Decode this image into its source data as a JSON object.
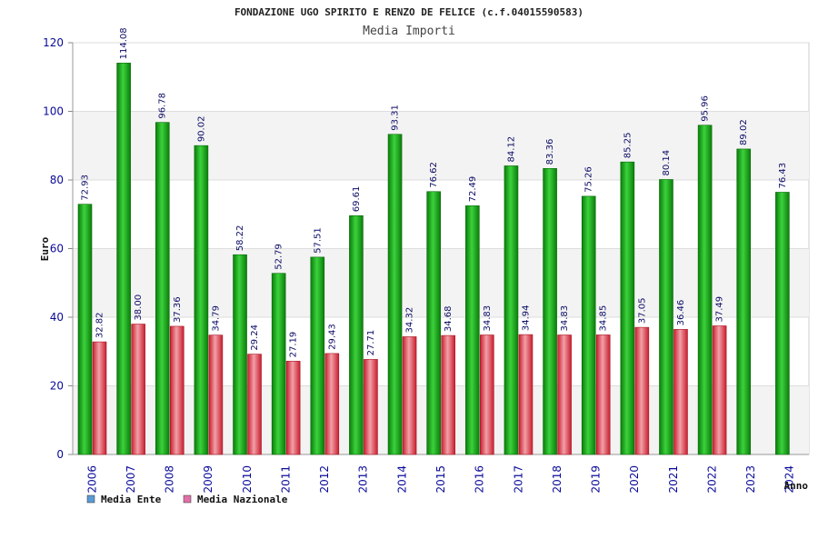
{
  "chart_data": {
    "type": "bar",
    "title": "FONDAZIONE UGO SPIRITO E RENZO DE FELICE (c.f.04015590583)",
    "subtitle": "Media Importi",
    "xlabel": "Anno",
    "ylabel": "Euro",
    "ylim": [
      0,
      120
    ],
    "yticks": [
      0,
      20,
      40,
      60,
      80,
      100,
      120
    ],
    "grid": true,
    "legend_position": "bottom-left",
    "categories": [
      "2006",
      "2007",
      "2008",
      "2009",
      "2010",
      "2011",
      "2012",
      "2013",
      "2014",
      "2015",
      "2016",
      "2017",
      "2018",
      "2019",
      "2020",
      "2021",
      "2022",
      "2023",
      "2024"
    ],
    "series": [
      {
        "name": "Media Ente",
        "color": "#13b013",
        "legend_color": "#5b9bd5",
        "values": [
          72.93,
          114.08,
          96.78,
          90.02,
          58.22,
          52.79,
          57.51,
          69.61,
          93.31,
          76.62,
          72.49,
          84.12,
          83.36,
          75.26,
          85.25,
          80.14,
          95.96,
          89.02,
          76.43
        ],
        "labels": [
          "72.93",
          "114.08",
          "96.78",
          "90.02",
          "58.22",
          "52.79",
          "57.51",
          "69.61",
          "93.31",
          "76.62",
          "72.49",
          "84.12",
          "83.36",
          "75.26",
          "85.25",
          "80.14",
          "95.96",
          "89.02",
          "76.43"
        ]
      },
      {
        "name": "Media Nazionale",
        "color": "#e43a4a",
        "legend_color": "#e070a8",
        "values": [
          32.82,
          38.0,
          37.36,
          34.79,
          29.24,
          27.19,
          29.43,
          27.71,
          34.32,
          34.68,
          34.83,
          34.94,
          34.83,
          34.85,
          37.05,
          36.46,
          37.49,
          null,
          null
        ],
        "labels": [
          "32.82",
          "38.00",
          "37.36",
          "34.79",
          "29.24",
          "27.19",
          "29.43",
          "27.71",
          "34.32",
          "34.68",
          "34.83",
          "34.94",
          "34.83",
          "34.85",
          "37.05",
          "36.46",
          "37.49",
          null,
          null
        ]
      }
    ]
  }
}
